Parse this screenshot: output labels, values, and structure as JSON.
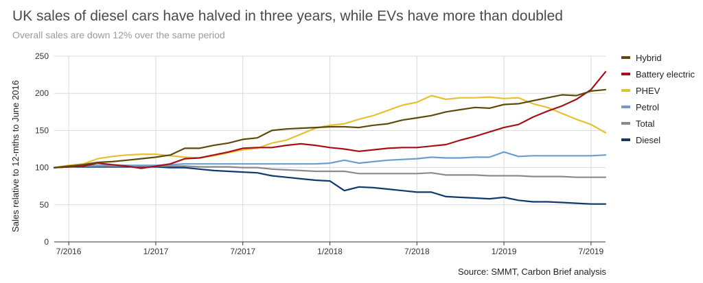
{
  "header": {
    "title": "UK sales of diesel cars have halved in three years, while EVs have more than doubled",
    "subtitle": "Overall sales are down 12% over the same period"
  },
  "footer": {
    "source": "Source: SMMT, Carbon Brief analysis"
  },
  "chart_data": {
    "type": "line",
    "title": "UK sales of diesel cars have halved in three years, while EVs have more than doubled",
    "subtitle": "Overall sales are down 12% over the same period",
    "xlabel": "",
    "ylabel": "Sales relative to 12-mths to June 2016",
    "ylim": [
      0,
      250
    ],
    "yticks": [
      0,
      50,
      100,
      150,
      200,
      250
    ],
    "xticks": [
      {
        "month": 1,
        "label": "7/2016"
      },
      {
        "month": 7,
        "label": "1/2017"
      },
      {
        "month": 13,
        "label": "7/2017"
      },
      {
        "month": 19,
        "label": "1/2018"
      },
      {
        "month": 25,
        "label": "7/2018"
      },
      {
        "month": 31,
        "label": "1/2019"
      },
      {
        "month": 37,
        "label": "7/2019"
      }
    ],
    "x_month_range": [
      0,
      38
    ],
    "x_note": "month index 0 = June 2016 ... 38 = August 2019",
    "grid": true,
    "legend_position": "right",
    "series": [
      {
        "name": "Hybrid",
        "color": "#5c4a0c",
        "values": [
          100,
          102,
          104,
          107,
          108,
          110,
          112,
          114,
          117,
          126,
          126,
          130,
          133,
          138,
          140,
          150,
          152,
          153,
          154,
          155,
          155,
          154,
          157,
          159,
          164,
          167,
          170,
          175,
          178,
          181,
          180,
          185,
          186,
          190,
          194,
          198,
          197,
          203,
          205
        ]
      },
      {
        "name": "Battery electric",
        "color": "#a50f15",
        "values": [
          100,
          101,
          102,
          106,
          104,
          102,
          99,
          102,
          105,
          112,
          113,
          117,
          121,
          126,
          127,
          127,
          130,
          132,
          130,
          127,
          125,
          122,
          124,
          126,
          127,
          127,
          129,
          131,
          137,
          142,
          148,
          154,
          158,
          168,
          176,
          183,
          192,
          205,
          229
        ]
      },
      {
        "name": "PHEV",
        "color": "#e6c02e",
        "values": [
          100,
          103,
          105,
          112,
          115,
          117,
          118,
          118,
          116,
          114,
          113,
          116,
          120,
          124,
          126,
          133,
          137,
          145,
          153,
          157,
          159,
          165,
          170,
          177,
          184,
          188,
          197,
          192,
          194,
          194,
          195,
          193,
          194,
          186,
          181,
          173,
          165,
          158,
          147
        ]
      },
      {
        "name": "Petrol",
        "color": "#6a9cd0",
        "values": [
          100,
          101,
          102,
          103,
          103,
          103,
          103,
          103,
          104,
          105,
          105,
          105,
          105,
          105,
          105,
          105,
          105,
          105,
          105,
          106,
          110,
          106,
          108,
          110,
          111,
          112,
          114,
          113,
          113,
          114,
          114,
          121,
          115,
          116,
          116,
          116,
          116,
          116,
          117
        ]
      },
      {
        "name": "Total",
        "color": "#8a8a8a",
        "values": [
          100,
          101,
          102,
          102,
          102,
          102,
          102,
          102,
          102,
          102,
          101,
          101,
          101,
          100,
          100,
          98,
          97,
          96,
          95,
          95,
          95,
          92,
          92,
          92,
          92,
          92,
          93,
          90,
          90,
          90,
          89,
          89,
          89,
          88,
          88,
          88,
          87,
          87,
          87
        ]
      },
      {
        "name": "Diesel",
        "color": "#0d3a6e",
        "values": [
          100,
          101,
          101,
          101,
          101,
          101,
          101,
          101,
          100,
          100,
          98,
          96,
          95,
          94,
          93,
          89,
          87,
          85,
          83,
          82,
          69,
          74,
          73,
          71,
          69,
          67,
          67,
          61,
          60,
          59,
          58,
          60,
          56,
          54,
          54,
          53,
          52,
          51,
          51
        ]
      }
    ]
  }
}
